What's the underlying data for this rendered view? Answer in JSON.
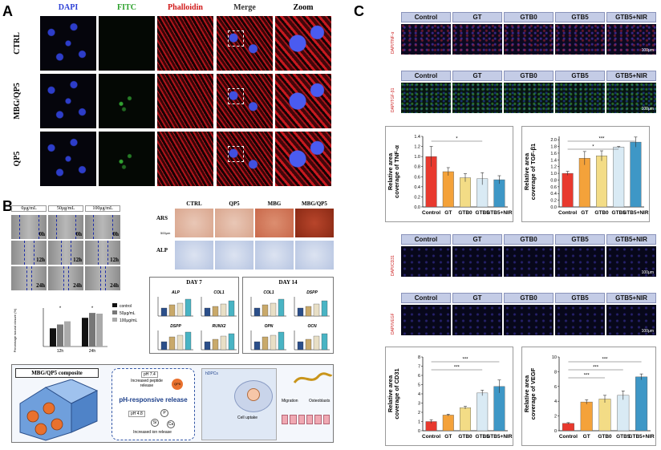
{
  "panel_a": {
    "letter": "A",
    "columns": [
      "DAPI",
      "FITC",
      "Phalloidin",
      "Merge",
      "Zoom"
    ],
    "column_colors": [
      "#2b3fd6",
      "#2aa02a",
      "#d11a1a",
      "#333333",
      "#000000"
    ],
    "rows": [
      "CTRL",
      "MBG/QP5",
      "QP5"
    ]
  },
  "panel_b": {
    "letter": "B",
    "scratch_headers": [
      "0μg/mL",
      "50μg/mL",
      "100μg/mL"
    ],
    "times": [
      "0h",
      "12h",
      "24h"
    ],
    "stain_columns": [
      "CTRL",
      "QP5",
      "MBG",
      "MBG/QP5"
    ],
    "stain_rows": [
      "ARS",
      "ALP"
    ],
    "scale": "500μm",
    "day7": "DAY 7",
    "day14": "DAY 14",
    "day7_genes": [
      "ALP",
      "COL1",
      "DSPP",
      "RUNX2"
    ],
    "day14_genes": [
      "COL1",
      "DSPP",
      "OPN",
      "OCN"
    ],
    "wound_chart": {
      "ylabel": "Percentage wound closure (%)",
      "categories": [
        "12h",
        "24h"
      ],
      "legend": [
        "control",
        "50μg/mL",
        "100μg/mL"
      ],
      "values": [
        [
          52,
          63,
          72
        ],
        [
          82,
          96,
          94
        ]
      ],
      "colors": [
        "#111111",
        "#777777",
        "#aaaaaa"
      ],
      "sig": "*"
    },
    "schematic": {
      "composite_title": "MBG/QP5 composite",
      "ph_release": "pH-responsive release",
      "ph74": "pH 7.4",
      "peptide": "Increased peptide release",
      "qp5": "QP5",
      "ph48": "pH 4.8",
      "ion": "Increased ion release",
      "ions": [
        "P",
        "Si",
        "Ca"
      ],
      "hdpcs": "hDPCs",
      "uptake": "Cell uptake",
      "migration": "Migration",
      "osteoblasts": "Osteoblasts"
    }
  },
  "panel_c": {
    "letter": "C",
    "groups": [
      "Control",
      "GT",
      "GTB0",
      "GTB5",
      "GTB5+NIR"
    ],
    "scale": "100μm",
    "stain_labels": [
      "DAPI/TNF-α",
      "DAPI/TGF-β1",
      "DAPI/CD31",
      "DAPI/VEGF"
    ],
    "chart_data": [
      {
        "type": "bar",
        "categories": [
          "Control",
          "GT",
          "GTB0",
          "GTB5",
          "GTB5+NIR"
        ],
        "values": [
          1.0,
          0.7,
          0.58,
          0.56,
          0.54
        ],
        "errors": [
          0.2,
          0.08,
          0.08,
          0.12,
          0.08
        ],
        "ylabel": "Relative area coverage of TNF-α",
        "ylim": [
          0,
          1.4
        ],
        "yticks": [
          "0.0",
          "0.2",
          "0.4",
          "0.6",
          "0.8",
          "1.0",
          "1.2",
          "1.4"
        ],
        "colors": [
          "#e8392e",
          "#f4a23a",
          "#f3dc86",
          "#d9eaf4",
          "#3e97c6"
        ],
        "sig": [
          "*"
        ]
      },
      {
        "type": "bar",
        "categories": [
          "Control",
          "GT",
          "GTB0",
          "GTB5",
          "GTB5+NIR"
        ],
        "values": [
          1.0,
          1.45,
          1.52,
          1.78,
          1.93
        ],
        "errors": [
          0.06,
          0.2,
          0.15,
          0.02,
          0.15
        ],
        "ylabel": "Relative area coverage of TGF-β1",
        "ylim": [
          0,
          2.1
        ],
        "yticks": [
          "0.0",
          "0.2",
          "0.4",
          "0.6",
          "0.8",
          "1.0",
          "1.2",
          "1.4",
          "1.6",
          "1.8",
          "2.0"
        ],
        "colors": [
          "#e8392e",
          "#f4a23a",
          "#f3dc86",
          "#d9eaf4",
          "#3e97c6"
        ],
        "sig": [
          "***",
          "*"
        ]
      },
      {
        "type": "bar",
        "categories": [
          "Control",
          "GT",
          "GTB0",
          "GTB5",
          "GTB5+NIR"
        ],
        "values": [
          1.0,
          1.7,
          2.5,
          4.1,
          4.8
        ],
        "errors": [
          0.2,
          0.1,
          0.15,
          0.3,
          0.7
        ],
        "ylabel": "Relative area coverage of CD31",
        "ylim": [
          0,
          8
        ],
        "yticks": [
          "0",
          "1",
          "2",
          "3",
          "4",
          "5",
          "6",
          "7",
          "8"
        ],
        "colors": [
          "#e8392e",
          "#f4a23a",
          "#f3dc86",
          "#d9eaf4",
          "#3e97c6"
        ],
        "sig": [
          "***",
          "***"
        ]
      },
      {
        "type": "bar",
        "categories": [
          "Control",
          "GT",
          "GTB0",
          "GTB5",
          "GTB5+NIR"
        ],
        "values": [
          1.0,
          3.9,
          4.3,
          4.8,
          7.3
        ],
        "errors": [
          0.1,
          0.3,
          0.5,
          0.6,
          0.4
        ],
        "ylabel": "Relative area coverage of VEGF",
        "ylim": [
          0,
          10
        ],
        "yticks": [
          "0",
          "2",
          "4",
          "6",
          "8",
          "10"
        ],
        "colors": [
          "#e8392e",
          "#f4a23a",
          "#f3dc86",
          "#d9eaf4",
          "#3e97c6"
        ],
        "sig": [
          "***",
          "***",
          "***"
        ]
      }
    ]
  }
}
